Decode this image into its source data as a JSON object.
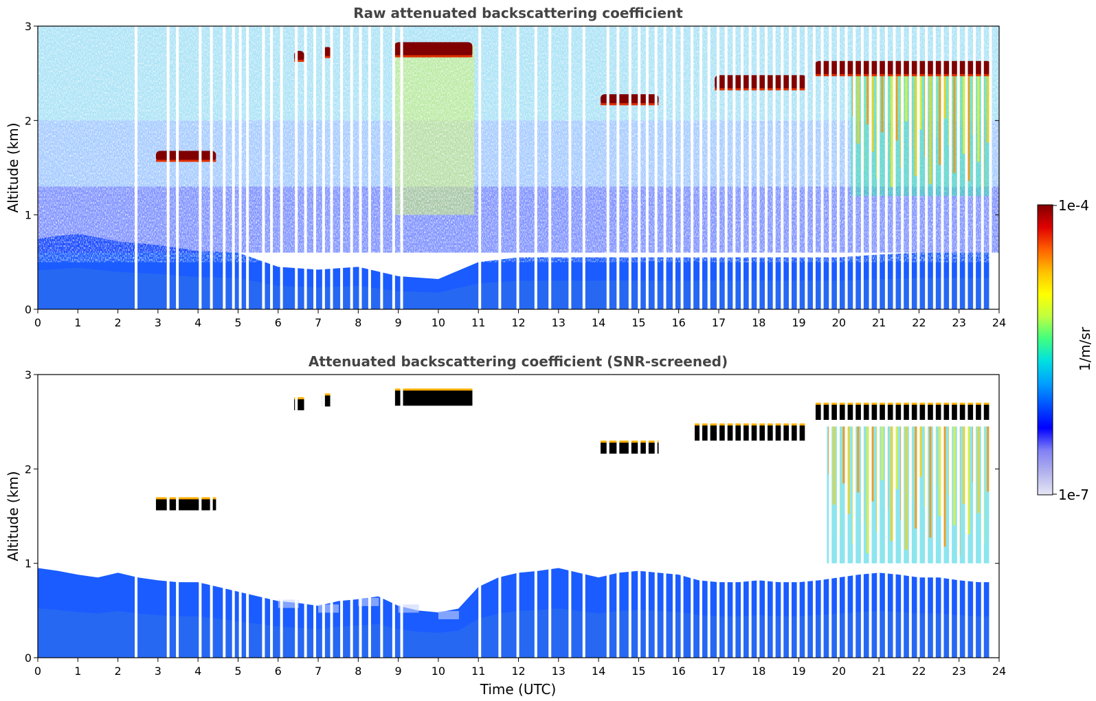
{
  "chart_data": [
    {
      "type": "heatmap",
      "title": "Raw attenuated backscattering coefficient",
      "xlabel": "",
      "ylabel": "Altitude (km)",
      "xlim": [
        0,
        24
      ],
      "ylim": [
        0,
        3
      ],
      "x_ticks": [
        "0",
        "1",
        "2",
        "3",
        "4",
        "5",
        "6",
        "7",
        "8",
        "9",
        "10",
        "11",
        "12",
        "13",
        "14",
        "15",
        "16",
        "17",
        "18",
        "19",
        "20",
        "21",
        "22",
        "23",
        "24"
      ],
      "y_ticks": [
        "0",
        "1",
        "2",
        "3"
      ],
      "missing_data_gaps_utc": [
        2.42,
        3.22,
        3.45,
        4.02,
        4.3,
        4.62,
        4.85,
        5.02,
        5.2,
        5.6,
        5.8,
        6.05,
        6.42,
        6.65,
        6.88,
        7.1,
        7.3,
        7.55,
        7.8,
        8.02,
        8.25,
        8.55,
        8.85,
        9.05,
        11.0,
        11.5,
        11.95,
        12.4,
        12.75,
        13.25,
        13.6,
        14.2,
        14.45,
        14.75,
        14.98,
        15.18,
        15.4,
        15.62,
        15.85,
        16.05,
        16.3,
        16.52,
        16.72,
        16.95,
        17.15,
        17.35,
        17.55,
        17.75,
        17.95,
        18.15,
        18.35,
        18.55,
        18.75,
        18.95,
        19.15,
        19.35,
        19.55,
        19.75,
        19.95,
        20.15,
        20.35,
        20.55,
        20.75,
        20.95,
        21.15,
        21.35,
        21.55,
        21.75,
        21.95,
        22.15,
        22.35,
        22.55,
        22.75,
        22.95,
        23.15,
        23.35,
        23.55,
        23.75
      ],
      "boundary_layer_top_km": [
        {
          "x": 0,
          "y": 0.75
        },
        {
          "x": 1,
          "y": 0.8
        },
        {
          "x": 2,
          "y": 0.72
        },
        {
          "x": 3,
          "y": 0.68
        },
        {
          "x": 4,
          "y": 0.62
        },
        {
          "x": 5,
          "y": 0.6
        },
        {
          "x": 6,
          "y": 0.45
        },
        {
          "x": 7,
          "y": 0.42
        },
        {
          "x": 8,
          "y": 0.45
        },
        {
          "x": 9,
          "y": 0.35
        },
        {
          "x": 10,
          "y": 0.32
        },
        {
          "x": 11,
          "y": 0.5
        },
        {
          "x": 12,
          "y": 0.55
        },
        {
          "x": 13,
          "y": 0.55
        },
        {
          "x": 14,
          "y": 0.55
        },
        {
          "x": 15,
          "y": 0.55
        },
        {
          "x": 16,
          "y": 0.55
        },
        {
          "x": 17,
          "y": 0.55
        },
        {
          "x": 18,
          "y": 0.55
        },
        {
          "x": 19,
          "y": 0.55
        },
        {
          "x": 20,
          "y": 0.55
        },
        {
          "x": 21,
          "y": 0.58
        },
        {
          "x": 22,
          "y": 0.6
        },
        {
          "x": 23,
          "y": 0.6
        },
        {
          "x": 23.8,
          "y": 0.6
        }
      ],
      "cloud_layers": [
        {
          "x_start": 2.95,
          "x_end": 4.45,
          "alt_km": 1.62,
          "level": "1e-4"
        },
        {
          "x_start": 6.4,
          "x_end": 6.65,
          "alt_km": 2.68,
          "level": "1e-4"
        },
        {
          "x_start": 7.1,
          "x_end": 7.35,
          "alt_km": 2.72,
          "level": "1e-4"
        },
        {
          "x_start": 8.9,
          "x_end": 10.85,
          "alt_km": 2.75,
          "level": "1e-4"
        },
        {
          "x_start": 14.05,
          "x_end": 15.5,
          "alt_km": 2.22,
          "level": "1e-4"
        },
        {
          "x_start": 16.9,
          "x_end": 19.2,
          "alt_km": 2.4,
          "level": "1e-4"
        },
        {
          "x_start": 19.4,
          "x_end": 23.8,
          "alt_km": 2.55,
          "level": "1e-4"
        }
      ],
      "precipitation_region": {
        "x_start": 20.3,
        "x_end": 23.8,
        "alt_top_km": 2.5,
        "alt_bottom_km": 1.2
      },
      "aerosol_layer": {
        "x_start": 8.9,
        "x_end": 10.9,
        "alt_top_km": 2.8,
        "alt_bottom_km": 1.0
      }
    },
    {
      "type": "heatmap",
      "title": "Attenuated backscattering coefficient (SNR-screened)",
      "xlabel": "Time (UTC)",
      "ylabel": "Altitude (km)",
      "xlim": [
        0,
        24
      ],
      "ylim": [
        0,
        3
      ],
      "x_ticks": [
        "0",
        "1",
        "2",
        "3",
        "4",
        "5",
        "6",
        "7",
        "8",
        "9",
        "10",
        "11",
        "12",
        "13",
        "14",
        "15",
        "16",
        "17",
        "18",
        "19",
        "20",
        "21",
        "22",
        "23",
        "24"
      ],
      "y_ticks": [
        "0",
        "1",
        "2",
        "3"
      ],
      "boundary_layer_top_km": [
        {
          "x": 0,
          "y": 0.95
        },
        {
          "x": 0.5,
          "y": 0.92
        },
        {
          "x": 1.0,
          "y": 0.88
        },
        {
          "x": 1.5,
          "y": 0.85
        },
        {
          "x": 2.0,
          "y": 0.9
        },
        {
          "x": 2.5,
          "y": 0.85
        },
        {
          "x": 3.0,
          "y": 0.82
        },
        {
          "x": 3.5,
          "y": 0.8
        },
        {
          "x": 4.0,
          "y": 0.8
        },
        {
          "x": 4.5,
          "y": 0.75
        },
        {
          "x": 5.0,
          "y": 0.7
        },
        {
          "x": 5.5,
          "y": 0.65
        },
        {
          "x": 6.0,
          "y": 0.6
        },
        {
          "x": 6.5,
          "y": 0.58
        },
        {
          "x": 7.0,
          "y": 0.55
        },
        {
          "x": 7.5,
          "y": 0.6
        },
        {
          "x": 8.0,
          "y": 0.62
        },
        {
          "x": 8.5,
          "y": 0.65
        },
        {
          "x": 9.0,
          "y": 0.55
        },
        {
          "x": 9.5,
          "y": 0.5
        },
        {
          "x": 10.0,
          "y": 0.48
        },
        {
          "x": 10.5,
          "y": 0.52
        },
        {
          "x": 11.0,
          "y": 0.75
        },
        {
          "x": 11.5,
          "y": 0.85
        },
        {
          "x": 12.0,
          "y": 0.9
        },
        {
          "x": 12.5,
          "y": 0.92
        },
        {
          "x": 13.0,
          "y": 0.95
        },
        {
          "x": 13.5,
          "y": 0.9
        },
        {
          "x": 14.0,
          "y": 0.85
        },
        {
          "x": 14.5,
          "y": 0.9
        },
        {
          "x": 15.0,
          "y": 0.92
        },
        {
          "x": 15.5,
          "y": 0.9
        },
        {
          "x": 16.0,
          "y": 0.88
        },
        {
          "x": 16.5,
          "y": 0.82
        },
        {
          "x": 17.0,
          "y": 0.8
        },
        {
          "x": 17.5,
          "y": 0.8
        },
        {
          "x": 18.0,
          "y": 0.82
        },
        {
          "x": 18.5,
          "y": 0.8
        },
        {
          "x": 19.0,
          "y": 0.8
        },
        {
          "x": 19.5,
          "y": 0.82
        },
        {
          "x": 20.0,
          "y": 0.85
        },
        {
          "x": 20.5,
          "y": 0.88
        },
        {
          "x": 21.0,
          "y": 0.9
        },
        {
          "x": 21.5,
          "y": 0.88
        },
        {
          "x": 22.0,
          "y": 0.85
        },
        {
          "x": 22.5,
          "y": 0.85
        },
        {
          "x": 23.0,
          "y": 0.82
        },
        {
          "x": 23.5,
          "y": 0.8
        },
        {
          "x": 23.8,
          "y": 0.8
        }
      ],
      "cloud_layers": [
        {
          "x_start": 2.95,
          "x_end": 4.45,
          "alt_km": 1.62,
          "level": "saturated"
        },
        {
          "x_start": 6.4,
          "x_end": 6.65,
          "alt_km": 2.68,
          "level": "saturated"
        },
        {
          "x_start": 7.1,
          "x_end": 7.35,
          "alt_km": 2.72,
          "level": "saturated"
        },
        {
          "x_start": 8.9,
          "x_end": 10.85,
          "alt_km": 2.75,
          "level": "saturated"
        },
        {
          "x_start": 14.05,
          "x_end": 15.5,
          "alt_km": 2.22,
          "level": "saturated"
        },
        {
          "x_start": 16.4,
          "x_end": 19.2,
          "alt_km": 2.38,
          "level": "saturated"
        },
        {
          "x_start": 19.4,
          "x_end": 23.8,
          "alt_km": 2.6,
          "level": "saturated"
        }
      ],
      "precipitation_region": {
        "x_start": 19.7,
        "x_end": 23.8,
        "alt_top_km": 2.45,
        "alt_bottom_km": 1.0
      }
    }
  ],
  "colorbar": {
    "max_label": "1e-4",
    "min_label": "1e-7",
    "label": "1/m/sr",
    "colormap": "jet",
    "colors": [
      "#e6e6f5",
      "#b3b3ee",
      "#8080f5",
      "#0000ff",
      "#0050ff",
      "#00a0ff",
      "#00e0e0",
      "#40ff80",
      "#c0ff40",
      "#ffff00",
      "#ffc000",
      "#ff6000",
      "#e00000",
      "#800000"
    ]
  },
  "colors": {
    "saturated": "#000000",
    "cloud_core": "#800000",
    "low_signal": "#0000ff",
    "background": "#ffffff"
  }
}
